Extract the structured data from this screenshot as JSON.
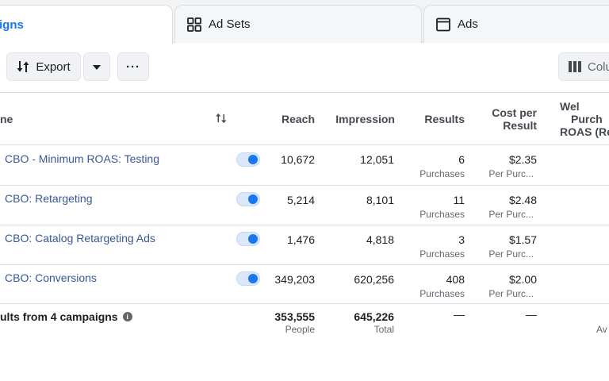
{
  "tabs": [
    {
      "label": "igns",
      "icon": "campaigns-icon"
    },
    {
      "label": "Ad Sets",
      "icon": "grid-icon"
    },
    {
      "label": "Ads",
      "icon": "window-icon"
    }
  ],
  "toolbar": {
    "export_label": "Export",
    "more_label": "···",
    "columns_label": "Colu"
  },
  "table": {
    "headers": {
      "name": "ne",
      "reach": "Reach",
      "impressions": "Impression",
      "results": "Results",
      "cost_line1": "Cost per",
      "cost_line2": "Result",
      "web_line1": "Wel",
      "web_line2": "Purch",
      "web_line3": "ROAS (Re"
    },
    "rows": [
      {
        "name": "CBO - Minimum ROAS: Testing",
        "reach": "10,672",
        "impressions": "12,051",
        "results": "6",
        "results_sub": "Purchases",
        "cost": "$2.35",
        "cost_sub": "Per Purc..."
      },
      {
        "name": "CBO: Retargeting",
        "reach": "5,214",
        "impressions": "8,101",
        "results": "11",
        "results_sub": "Purchases",
        "cost": "$2.48",
        "cost_sub": "Per Purc..."
      },
      {
        "name": "CBO: Catalog Retargeting Ads",
        "reach": "1,476",
        "impressions": "4,818",
        "results": "3",
        "results_sub": "Purchases",
        "cost": "$1.57",
        "cost_sub": "Per Purc..."
      },
      {
        "name": "CBO: Conversions",
        "reach": "349,203",
        "impressions": "620,256",
        "results": "408",
        "results_sub": "Purchases",
        "cost": "$2.00",
        "cost_sub": "Per Purc..."
      }
    ],
    "totals": {
      "label": "ults from 4 campaigns",
      "reach": "353,555",
      "reach_sub": "People",
      "impressions": "645,226",
      "impressions_sub": "Total",
      "results": "—",
      "cost": "—",
      "web_sub": "Av"
    }
  },
  "colors": {
    "accent": "#1877f2",
    "link": "#385898",
    "toggle_bg": "#dbe7fb"
  }
}
